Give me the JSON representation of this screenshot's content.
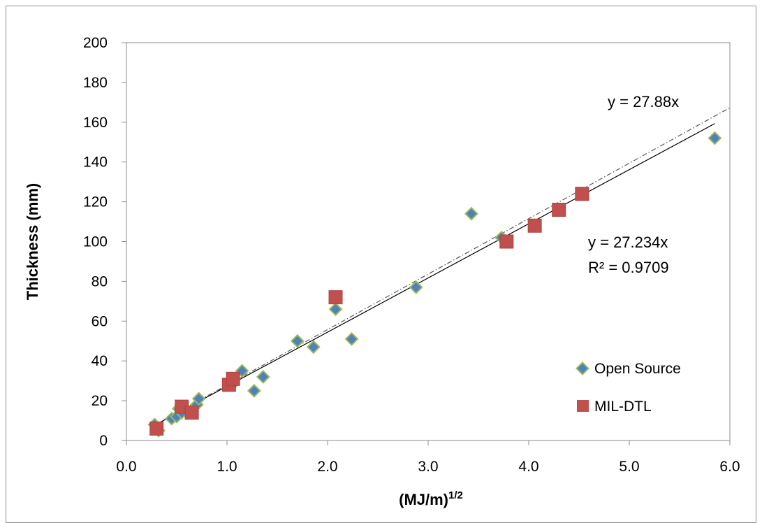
{
  "chart_data": {
    "type": "scatter",
    "xlabel": "(MJ/m)",
    "xlabel_sup": "1/2",
    "ylabel": "Thickness  (mm)",
    "xlim": [
      0,
      6
    ],
    "ylim": [
      0,
      200
    ],
    "x_ticks": [
      "0.0",
      "1.0",
      "2.0",
      "3.0",
      "4.0",
      "5.0",
      "6.0"
    ],
    "y_ticks": [
      "0",
      "20",
      "40",
      "60",
      "80",
      "100",
      "120",
      "140",
      "160",
      "180",
      "200"
    ],
    "grid": false,
    "legend_position": "bottom-right, inside plot",
    "series": [
      {
        "name": "Open Source",
        "marker": "diamond",
        "color": "#4f81bd",
        "edge_color": "#9bbb59",
        "points": [
          [
            0.28,
            8
          ],
          [
            0.32,
            5
          ],
          [
            0.45,
            11
          ],
          [
            0.5,
            12
          ],
          [
            0.52,
            16
          ],
          [
            0.55,
            14
          ],
          [
            0.7,
            18
          ],
          [
            0.72,
            21
          ],
          [
            1.05,
            28
          ],
          [
            1.15,
            35
          ],
          [
            1.27,
            25
          ],
          [
            1.36,
            32
          ],
          [
            1.7,
            50
          ],
          [
            1.86,
            47
          ],
          [
            2.08,
            66
          ],
          [
            2.24,
            51
          ],
          [
            2.88,
            77
          ],
          [
            3.43,
            114
          ],
          [
            3.73,
            102
          ],
          [
            5.85,
            152
          ]
        ]
      },
      {
        "name": "MIL-DTL",
        "marker": "square",
        "color": "#c0504d",
        "points": [
          [
            0.3,
            6
          ],
          [
            0.55,
            17
          ],
          [
            0.65,
            14
          ],
          [
            1.02,
            28
          ],
          [
            1.06,
            31
          ],
          [
            2.08,
            72
          ],
          [
            3.78,
            100
          ],
          [
            4.06,
            108
          ],
          [
            4.3,
            116
          ],
          [
            4.53,
            124
          ]
        ]
      }
    ],
    "trendlines": [
      {
        "slope": 27.234,
        "style": "solid",
        "color": "#000000",
        "x_range": [
          0.28,
          5.85
        ]
      },
      {
        "slope": 27.88,
        "style": "dash-dot",
        "color": "#555555",
        "x_range": [
          0.28,
          6.0
        ]
      }
    ],
    "annotations": {
      "eq_dashdot": "y = 27.88x",
      "eq_solid": "y = 27.234x",
      "r2": "R² = 0.9709"
    }
  }
}
